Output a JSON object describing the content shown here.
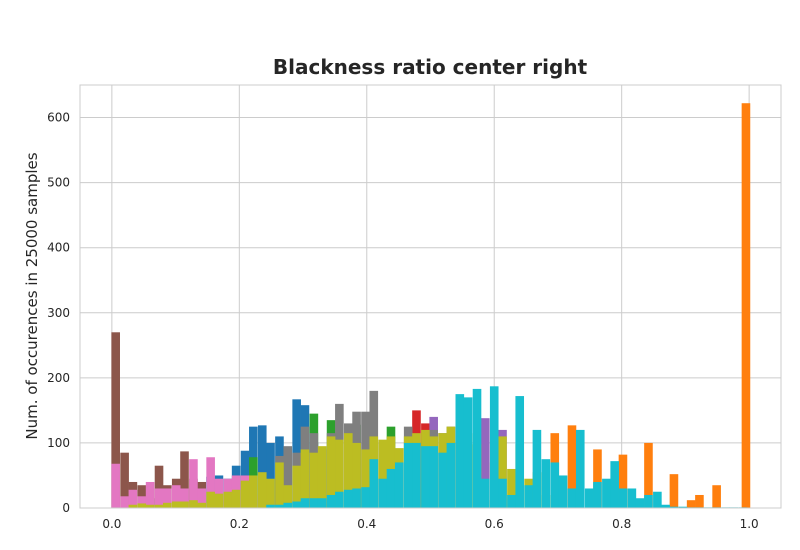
{
  "chart_data": {
    "type": "bar",
    "subtype": "overlaid-histogram",
    "title": "Blackness ratio center right",
    "xlabel": "",
    "ylabel": "Num. of occurences in 25000 samples",
    "xlim": [
      -0.05,
      1.05
    ],
    "ylim": [
      0,
      650
    ],
    "xticks": [
      "0.0",
      "0.2",
      "0.4",
      "0.6",
      "0.8",
      "1.0"
    ],
    "yticks": [
      "0",
      "100",
      "200",
      "300",
      "400",
      "500",
      "600"
    ],
    "grid": true,
    "bin_width": 0.0135,
    "series": [
      {
        "color": "#1f77b4",
        "bins": [
          [
            0.155,
            48
          ],
          [
            0.155,
            48
          ],
          [
            0.168,
            50
          ],
          [
            0.182,
            45
          ],
          [
            0.195,
            65
          ],
          [
            0.209,
            88
          ],
          [
            0.222,
            125
          ],
          [
            0.236,
            127
          ],
          [
            0.249,
            100
          ],
          [
            0.263,
            110
          ],
          [
            0.276,
            90
          ],
          [
            0.29,
            167
          ],
          [
            0.303,
            158
          ],
          [
            0.317,
            100
          ],
          [
            0.33,
            90
          ]
        ]
      },
      {
        "color": "#ff7f0e",
        "bins": [
          [
            0.695,
            115
          ],
          [
            0.722,
            127
          ],
          [
            0.762,
            90
          ],
          [
            0.802,
            82
          ],
          [
            0.842,
            100
          ],
          [
            0.882,
            52
          ],
          [
            0.909,
            12
          ],
          [
            0.922,
            20
          ],
          [
            0.949,
            35
          ],
          [
            0.995,
            622
          ]
        ]
      },
      {
        "color": "#2ca02c",
        "bins": [
          [
            0.222,
            78
          ],
          [
            0.317,
            145
          ],
          [
            0.344,
            135
          ],
          [
            0.384,
            128
          ],
          [
            0.438,
            125
          ]
        ]
      },
      {
        "color": "#d62728",
        "bins": [
          [
            0.478,
            150
          ],
          [
            0.492,
            130
          ]
        ]
      },
      {
        "color": "#9467bd",
        "bins": [
          [
            0.505,
            140
          ],
          [
            0.546,
            130
          ],
          [
            0.586,
            138
          ],
          [
            0.613,
            120
          ]
        ]
      },
      {
        "color": "#8c564b",
        "bins": [
          [
            0.006,
            270
          ],
          [
            0.02,
            85
          ],
          [
            0.033,
            40
          ],
          [
            0.047,
            35
          ],
          [
            0.06,
            15
          ],
          [
            0.074,
            65
          ],
          [
            0.087,
            35
          ],
          [
            0.101,
            45
          ],
          [
            0.114,
            87
          ],
          [
            0.128,
            45
          ],
          [
            0.141,
            40
          ]
        ]
      },
      {
        "color": "#e377c2",
        "bins": [
          [
            0.006,
            68
          ],
          [
            0.02,
            18
          ],
          [
            0.033,
            28
          ],
          [
            0.047,
            18
          ],
          [
            0.06,
            40
          ],
          [
            0.074,
            30
          ],
          [
            0.087,
            30
          ],
          [
            0.101,
            35
          ],
          [
            0.114,
            30
          ],
          [
            0.128,
            75
          ],
          [
            0.141,
            30
          ],
          [
            0.155,
            78
          ],
          [
            0.168,
            45
          ],
          [
            0.182,
            45
          ],
          [
            0.195,
            50
          ],
          [
            0.209,
            50
          ],
          [
            0.222,
            20
          ]
        ]
      },
      {
        "color": "#7f7f7f",
        "bins": [
          [
            0.263,
            80
          ],
          [
            0.276,
            95
          ],
          [
            0.29,
            85
          ],
          [
            0.303,
            125
          ],
          [
            0.317,
            115
          ],
          [
            0.33,
            90
          ],
          [
            0.344,
            115
          ],
          [
            0.357,
            160
          ],
          [
            0.371,
            130
          ],
          [
            0.384,
            148
          ],
          [
            0.398,
            148
          ],
          [
            0.411,
            180
          ],
          [
            0.425,
            100
          ],
          [
            0.438,
            90
          ],
          [
            0.465,
            125
          ],
          [
            0.505,
            120
          ],
          [
            0.519,
            115
          ],
          [
            0.532,
            125
          ]
        ]
      },
      {
        "color": "#bcbd22",
        "bins": [
          [
            0.033,
            5
          ],
          [
            0.047,
            7
          ],
          [
            0.06,
            5
          ],
          [
            0.074,
            5
          ],
          [
            0.087,
            8
          ],
          [
            0.101,
            10
          ],
          [
            0.114,
            10
          ],
          [
            0.128,
            12
          ],
          [
            0.141,
            8
          ],
          [
            0.155,
            25
          ],
          [
            0.168,
            22
          ],
          [
            0.182,
            25
          ],
          [
            0.195,
            28
          ],
          [
            0.209,
            42
          ],
          [
            0.222,
            50
          ],
          [
            0.236,
            55
          ],
          [
            0.249,
            45
          ],
          [
            0.263,
            70
          ],
          [
            0.276,
            35
          ],
          [
            0.29,
            65
          ],
          [
            0.303,
            90
          ],
          [
            0.317,
            85
          ],
          [
            0.33,
            95
          ],
          [
            0.344,
            110
          ],
          [
            0.357,
            105
          ],
          [
            0.371,
            115
          ],
          [
            0.384,
            100
          ],
          [
            0.398,
            90
          ],
          [
            0.411,
            110
          ],
          [
            0.425,
            105
          ],
          [
            0.438,
            110
          ],
          [
            0.451,
            92
          ],
          [
            0.465,
            110
          ],
          [
            0.478,
            115
          ],
          [
            0.492,
            120
          ],
          [
            0.505,
            110
          ],
          [
            0.519,
            115
          ],
          [
            0.532,
            125
          ],
          [
            0.546,
            12
          ],
          [
            0.559,
            115
          ],
          [
            0.573,
            98
          ],
          [
            0.586,
            12
          ],
          [
            0.6,
            70
          ],
          [
            0.613,
            110
          ],
          [
            0.627,
            60
          ],
          [
            0.64,
            98
          ],
          [
            0.654,
            45
          ],
          [
            0.667,
            55
          ],
          [
            0.681,
            20
          ]
        ]
      },
      {
        "color": "#17becf",
        "bins": [
          [
            0.249,
            5
          ],
          [
            0.263,
            5
          ],
          [
            0.276,
            8
          ],
          [
            0.29,
            10
          ],
          [
            0.303,
            15
          ],
          [
            0.317,
            15
          ],
          [
            0.33,
            15
          ],
          [
            0.344,
            20
          ],
          [
            0.357,
            25
          ],
          [
            0.371,
            28
          ],
          [
            0.384,
            30
          ],
          [
            0.398,
            32
          ],
          [
            0.411,
            75
          ],
          [
            0.425,
            45
          ],
          [
            0.438,
            60
          ],
          [
            0.451,
            70
          ],
          [
            0.465,
            100
          ],
          [
            0.478,
            100
          ],
          [
            0.492,
            95
          ],
          [
            0.505,
            95
          ],
          [
            0.519,
            85
          ],
          [
            0.532,
            100
          ],
          [
            0.546,
            175
          ],
          [
            0.559,
            170
          ],
          [
            0.573,
            183
          ],
          [
            0.586,
            45
          ],
          [
            0.6,
            187
          ],
          [
            0.613,
            45
          ],
          [
            0.627,
            20
          ],
          [
            0.64,
            172
          ],
          [
            0.654,
            35
          ],
          [
            0.667,
            120
          ],
          [
            0.681,
            75
          ],
          [
            0.695,
            70
          ],
          [
            0.708,
            50
          ],
          [
            0.722,
            30
          ],
          [
            0.735,
            120
          ],
          [
            0.749,
            30
          ],
          [
            0.762,
            40
          ],
          [
            0.776,
            45
          ],
          [
            0.789,
            72
          ],
          [
            0.802,
            30
          ],
          [
            0.816,
            30
          ],
          [
            0.829,
            15
          ],
          [
            0.842,
            20
          ],
          [
            0.856,
            25
          ],
          [
            0.869,
            5
          ],
          [
            0.882,
            2
          ],
          [
            0.896,
            2
          ],
          [
            0.909,
            1
          ],
          [
            0.922,
            1
          ],
          [
            0.936,
            1
          ],
          [
            0.949,
            1
          ],
          [
            0.963,
            1
          ],
          [
            0.976,
            1
          ],
          [
            0.99,
            1
          ]
        ]
      }
    ]
  }
}
